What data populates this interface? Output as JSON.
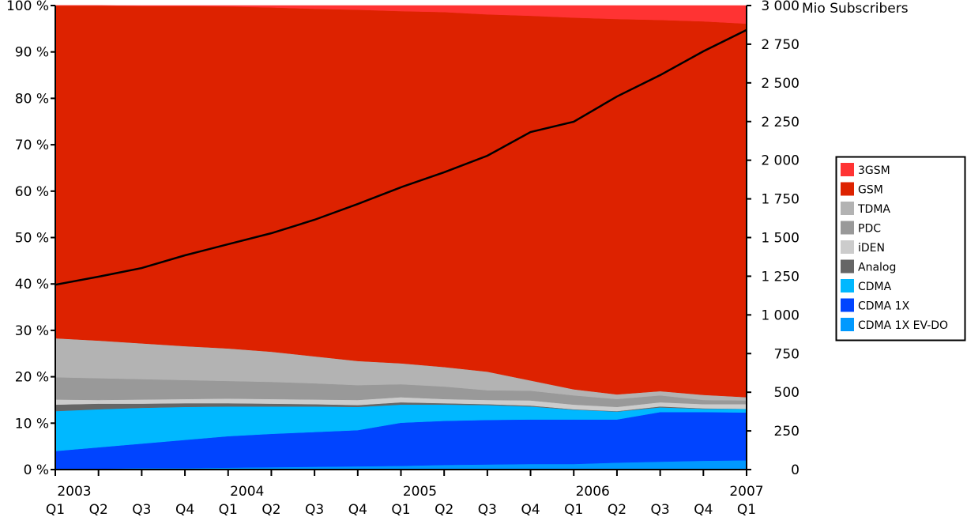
{
  "chart_data": {
    "type": "area",
    "stacked": "percent",
    "categories": [
      "2003 Q1",
      "2003 Q2",
      "2003 Q3",
      "2003 Q4",
      "2004 Q1",
      "2004 Q2",
      "2004 Q3",
      "2004 Q4",
      "2005 Q1",
      "2005 Q2",
      "2005 Q3",
      "2005 Q4",
      "2006 Q1",
      "2006 Q2",
      "2006 Q3",
      "2006 Q4",
      "2007 Q1"
    ],
    "x_year_labels": [
      "2003",
      "2004",
      "2005",
      "2006",
      "2007"
    ],
    "x_quarter_labels": [
      "Q1",
      "Q2",
      "Q3",
      "Q4",
      "Q1",
      "Q2",
      "Q3",
      "Q4",
      "Q1",
      "Q2",
      "Q3",
      "Q4",
      "Q1",
      "Q2",
      "Q3",
      "Q4",
      "Q1"
    ],
    "y_left": {
      "ylim": [
        0,
        100
      ],
      "ticks": [
        "0 %",
        "10 %",
        "20 %",
        "30 %",
        "40 %",
        "50 %",
        "60 %",
        "70 %",
        "80 %",
        "90 %",
        "100 %"
      ]
    },
    "y_right": {
      "label": "Mio Subscribers",
      "ylim": [
        0,
        3000
      ],
      "ticks": [
        "0",
        "250",
        "500",
        "750",
        "1 000",
        "1 250",
        "1 500",
        "1 750",
        "2 000",
        "2 250",
        "2 500",
        "2 750",
        "3 000"
      ]
    },
    "series": [
      {
        "name": "CDMA 1X EV-DO",
        "color": "#0099ff",
        "values": [
          0.2,
          0.2,
          0.3,
          0.3,
          0.4,
          0.5,
          0.6,
          0.7,
          0.8,
          1.0,
          1.1,
          1.2,
          1.2,
          1.5,
          1.7,
          1.9,
          2.0
        ]
      },
      {
        "name": "CDMA 1X",
        "color": "#0044ff",
        "values": [
          3.8,
          4.6,
          5.3,
          6.1,
          6.8,
          7.2,
          7.5,
          7.8,
          9.3,
          9.5,
          9.6,
          9.6,
          9.6,
          9.3,
          10.7,
          10.5,
          10.3
        ]
      },
      {
        "name": "CDMA",
        "color": "#00b8ff",
        "values": [
          8.6,
          8.2,
          7.7,
          7.1,
          6.4,
          5.9,
          5.5,
          5.0,
          3.9,
          3.5,
          3.2,
          2.8,
          2.1,
          1.7,
          1.0,
          0.7,
          0.8
        ]
      },
      {
        "name": "Analog",
        "color": "#666666",
        "values": [
          1.4,
          1.2,
          0.9,
          0.8,
          0.7,
          0.6,
          0.5,
          0.4,
          0.5,
          0.3,
          0.2,
          0.2,
          0.1,
          0.1,
          0.2,
          0.1,
          0.0
        ]
      },
      {
        "name": "iDEN",
        "color": "#cccccc",
        "values": [
          1.1,
          0.8,
          0.9,
          0.9,
          1.0,
          1.0,
          1.0,
          1.1,
          1.1,
          0.9,
          0.9,
          1.1,
          1.0,
          0.9,
          0.9,
          0.9,
          1.0
        ]
      },
      {
        "name": "PDC",
        "color": "#999999",
        "values": [
          4.8,
          4.7,
          4.4,
          4.1,
          3.8,
          3.7,
          3.5,
          3.2,
          2.8,
          2.7,
          2.1,
          2.1,
          2.0,
          1.7,
          1.5,
          0.9,
          0.8
        ]
      },
      {
        "name": "TDMA",
        "color": "#b3b3b3",
        "values": [
          8.4,
          8.1,
          7.7,
          7.3,
          7.0,
          6.5,
          5.8,
          5.2,
          4.5,
          4.2,
          4.0,
          2.2,
          1.3,
          1.0,
          0.9,
          1.1,
          0.7
        ]
      },
      {
        "name": "GSM",
        "color": "#dd2200",
        "values": [
          71.7,
          72.2,
          72.7,
          73.3,
          73.7,
          74.2,
          74.9,
          75.7,
          75.9,
          76.5,
          77.0,
          78.6,
          80.1,
          80.9,
          80.0,
          80.5,
          80.5
        ]
      },
      {
        "name": "3GSM",
        "color": "#ff3333",
        "values": [
          0,
          0,
          0.1,
          0.1,
          0.2,
          0.4,
          0.7,
          0.9,
          1.2,
          1.4,
          1.9,
          2.2,
          2.6,
          2.9,
          3.1,
          3.4,
          3.9
        ]
      }
    ],
    "subscribers_line": {
      "axis": "right",
      "color": "#000000",
      "values": [
        1195,
        1247,
        1303,
        1385,
        1457,
        1528,
        1615,
        1717,
        1825,
        1922,
        2029,
        2182,
        2249,
        2412,
        2550,
        2704,
        2842
      ]
    },
    "legend": {
      "placement": "right",
      "order": [
        "3GSM",
        "GSM",
        "TDMA",
        "PDC",
        "iDEN",
        "Analog",
        "CDMA",
        "CDMA 1X",
        "CDMA 1X EV-DO"
      ]
    }
  }
}
